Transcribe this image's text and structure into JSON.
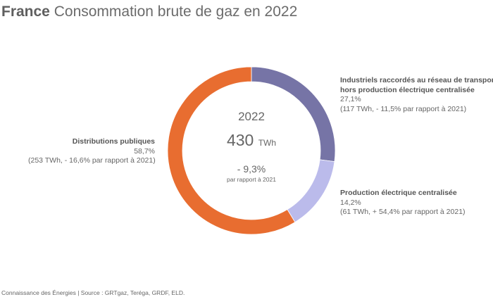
{
  "header": {
    "country": "France",
    "title": "Consommation brute de gaz en 2022"
  },
  "chart_data": {
    "type": "pie",
    "variant": "donut",
    "title": "Consommation brute de gaz en 2022",
    "center": {
      "year": "2022",
      "total_value": "430",
      "total_unit": "TWh",
      "change": "- 9,3%",
      "change_note": "par rapport à 2021"
    },
    "slices": [
      {
        "name_lines": [
          "Industriels raccordés au réseau de transport",
          "hors production électrique centralisée"
        ],
        "value": 27.1,
        "percent_label": "27,1%",
        "detail": "(117 TWh, - 11,5% par rapport à 2021)",
        "color": "#7674a6"
      },
      {
        "name_lines": [
          "Production électrique centralisée"
        ],
        "value": 14.2,
        "percent_label": "14,2%",
        "detail": "(61 TWh, + 54,4% par rapport à 2021)",
        "color": "#bbbbeb"
      },
      {
        "name_lines": [
          "Distributions publiques"
        ],
        "value": 58.7,
        "percent_label": "58,7%",
        "detail": "(253 TWh, - 16,6% par rapport à 2021)",
        "color": "#e86d30"
      }
    ]
  },
  "footer": {
    "source": "Connaissance des Énergies | Source : GRTgaz, Teréga, GRDF, ELD."
  }
}
